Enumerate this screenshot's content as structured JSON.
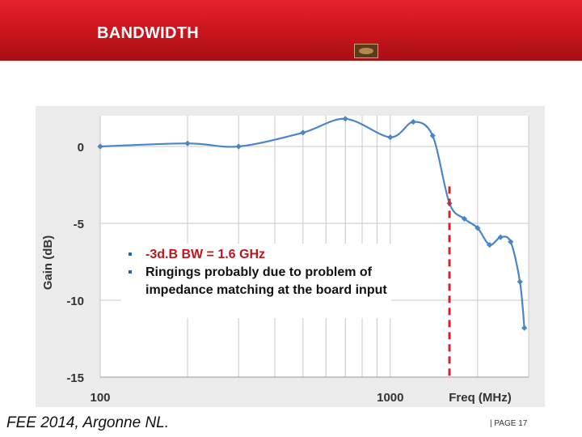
{
  "header": {
    "title": "BANDWIDTH"
  },
  "footer": {
    "left": "FEE 2014, Argonne NL.",
    "right": "| PAGE 17"
  },
  "note": {
    "items": [
      "-3d.B BW = 1.6 GHz",
      "Ringings probably due to problem of impedance matching at the board input"
    ]
  },
  "colors": {
    "header": "#c8141c",
    "series": "#4a86c5",
    "marker": "#d72027"
  },
  "chart_data": {
    "type": "line",
    "title": "",
    "xlabel": "Freq (MHz)",
    "ylabel": "Gain (dB)",
    "xscale": "log",
    "xlim": [
      100,
      3000
    ],
    "ylim": [
      -15,
      2
    ],
    "xticks": [
      {
        "value": 100,
        "label": "100"
      },
      {
        "value": 1000,
        "label": "1000"
      }
    ],
    "yticks": [
      {
        "value": 0,
        "label": "0"
      },
      {
        "value": -5,
        "label": "-5"
      },
      {
        "value": -10,
        "label": "-10"
      },
      {
        "value": -15,
        "label": "-15"
      }
    ],
    "grid": true,
    "series": [
      {
        "name": "",
        "x": [
          100,
          200,
          300,
          500,
          700,
          1000,
          1200,
          1400,
          1600,
          1800,
          2000,
          2200,
          2400,
          2600,
          2800,
          2900
        ],
        "y": [
          0,
          0.2,
          0,
          0.9,
          1.8,
          0.6,
          1.6,
          0.7,
          -3.7,
          -4.7,
          -5.3,
          -6.4,
          -5.9,
          -6.2,
          -8.8,
          -11.8
        ],
        "smooth": true
      }
    ],
    "vline": {
      "x": 1600,
      "y_top": -2.6,
      "style": "dashed"
    },
    "annotations": []
  }
}
